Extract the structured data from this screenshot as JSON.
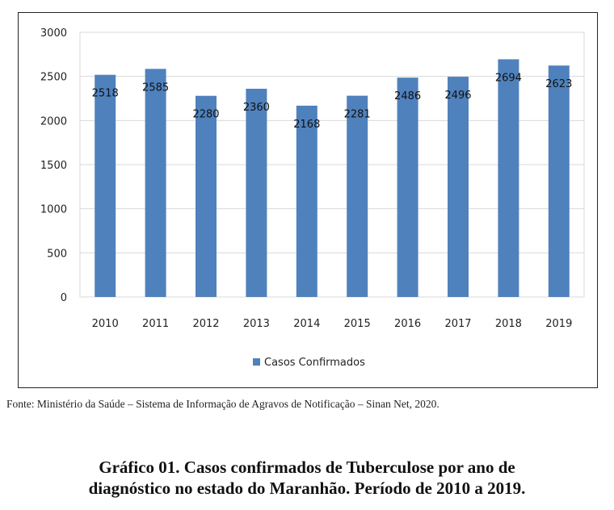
{
  "chart_data": {
    "type": "bar",
    "categories": [
      "2010",
      "2011",
      "2012",
      "2013",
      "2014",
      "2015",
      "2016",
      "2017",
      "2018",
      "2019"
    ],
    "series": [
      {
        "name": "Casos Confirmados",
        "values": [
          2518,
          2585,
          2280,
          2360,
          2168,
          2281,
          2486,
          2496,
          2694,
          2623
        ],
        "color": "#4f81bd"
      }
    ],
    "ylim": [
      0,
      3000
    ],
    "yticks": [
      0,
      500,
      1000,
      1500,
      2000,
      2500,
      3000
    ],
    "grid": true,
    "legend": "bottom-center",
    "data_labels": true
  },
  "source_note": "Fonte: Ministério da Saúde – Sistema de Informação de Agravos de Notificação – Sinan Net, 2020.",
  "caption": {
    "line1": "Gráfico 01. Casos confirmados de Tuberculose por ano de",
    "line2": "diagnóstico no estado do Maranhão. Período de 2010 a 2019."
  }
}
